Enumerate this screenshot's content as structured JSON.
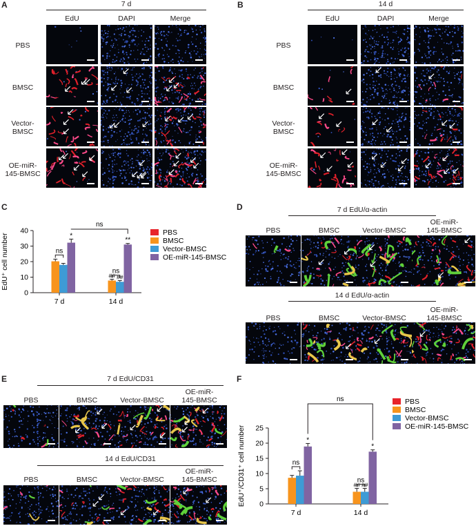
{
  "panel_labels": [
    "A",
    "B",
    "C",
    "D",
    "E",
    "F"
  ],
  "panelA": {
    "title": "7 d",
    "columns": [
      "EdU",
      "DAPI",
      "Merge"
    ],
    "rows": [
      "PBS",
      "BMSC",
      "Vector-\nBMSC",
      "OE-miR-\n145-BMSC"
    ]
  },
  "panelB": {
    "title": "14 d",
    "columns": [
      "EdU",
      "DAPI",
      "Merge"
    ],
    "rows": [
      "PBS",
      "BMSC",
      "Vector-\nBMSC",
      "OE-miR-\n145-BMSC"
    ]
  },
  "panelD": {
    "title_top": "7 d EdU/α-actin",
    "title_bottom": "14 d EdU/α-actin",
    "columns": [
      "PBS",
      "BMSC",
      "Vector-BMSC",
      "OE-miR-\n145-BMSC"
    ]
  },
  "panelE": {
    "title_top": "7 d EdU/CD31",
    "title_bottom": "14 d EdU/CD31",
    "columns": [
      "PBS",
      "BMSC",
      "Vector-BMSC",
      "OE-miR-\n145-BMSC"
    ]
  },
  "legend": {
    "entries": [
      "PBS",
      "BMSC",
      "Vector-BMSC",
      "OE-miR-145-BMSC"
    ],
    "colors": [
      "#e8242b",
      "#f7941d",
      "#3e9bd5",
      "#8064a2"
    ]
  },
  "chart_data": [
    {
      "panel": "C",
      "type": "bar",
      "categories": [
        "7 d",
        "14 d"
      ],
      "ylabel": "EdU⁺ cell number",
      "ylim": [
        0,
        40
      ],
      "yticks": [
        0,
        10,
        20,
        30,
        40
      ],
      "series": [
        {
          "name": "PBS",
          "values": [
            0,
            0
          ],
          "errors": [
            0,
            0
          ]
        },
        {
          "name": "BMSC",
          "values": [
            20.2,
            7.8
          ],
          "errors": [
            1.4,
            0.8
          ]
        },
        {
          "name": "Vector-BMSC",
          "values": [
            17.9,
            7.0
          ],
          "errors": [
            1.0,
            0.8
          ]
        },
        {
          "name": "OE-miR-145-BMSC",
          "values": [
            32.2,
            31.0
          ],
          "errors": [
            2.3,
            0.7
          ]
        }
      ],
      "annotations": [
        {
          "text": "ns",
          "between": [
            "BMSC",
            "Vector-BMSC"
          ],
          "category": "7 d"
        },
        {
          "text": "*",
          "series": "OE-miR-145-BMSC",
          "category": "7 d"
        },
        {
          "text": "ns",
          "between": [
            "BMSC",
            "Vector-BMSC"
          ],
          "category": "14 d"
        },
        {
          "text": "##",
          "series": "BMSC",
          "category": "14 d"
        },
        {
          "text": "##",
          "series": "Vector-BMSC",
          "category": "14 d"
        },
        {
          "text": "**",
          "series": "OE-miR-145-BMSC",
          "category": "14 d"
        },
        {
          "text": "ns",
          "between_categories": [
            "7 d",
            "14 d"
          ],
          "series": "OE-miR-145-BMSC"
        }
      ]
    },
    {
      "panel": "F",
      "type": "bar",
      "categories": [
        "7 d",
        "14 d"
      ],
      "ylabel": "EdU⁺/CD31⁺ cell number",
      "ylim": [
        0,
        25
      ],
      "yticks": [
        0,
        5,
        10,
        15,
        20,
        25
      ],
      "series": [
        {
          "name": "PBS",
          "values": [
            0,
            0
          ],
          "errors": [
            0,
            0
          ]
        },
        {
          "name": "BMSC",
          "values": [
            8.6,
            4.0
          ],
          "errors": [
            0.8,
            1.1
          ]
        },
        {
          "name": "Vector-BMSC",
          "values": [
            9.3,
            4.0
          ],
          "errors": [
            1.6,
            1.1
          ]
        },
        {
          "name": "OE-miR-145-BMSC",
          "values": [
            18.9,
            17.2
          ],
          "errors": [
            1.0,
            0.6
          ]
        }
      ],
      "annotations": [
        {
          "text": "ns",
          "between": [
            "BMSC",
            "Vector-BMSC"
          ],
          "category": "7 d"
        },
        {
          "text": "*",
          "series": "OE-miR-145-BMSC",
          "category": "7 d"
        },
        {
          "text": "ns",
          "between": [
            "BMSC",
            "Vector-BMSC"
          ],
          "category": "14 d"
        },
        {
          "text": "##",
          "series": "BMSC",
          "category": "14 d"
        },
        {
          "text": "##",
          "series": "Vector-BMSC",
          "category": "14 d"
        },
        {
          "text": "*",
          "series": "OE-miR-145-BMSC",
          "category": "14 d"
        },
        {
          "text": "ns",
          "between_categories": [
            "7 d",
            "14 d"
          ],
          "series": "OE-miR-145-BMSC"
        }
      ]
    }
  ]
}
